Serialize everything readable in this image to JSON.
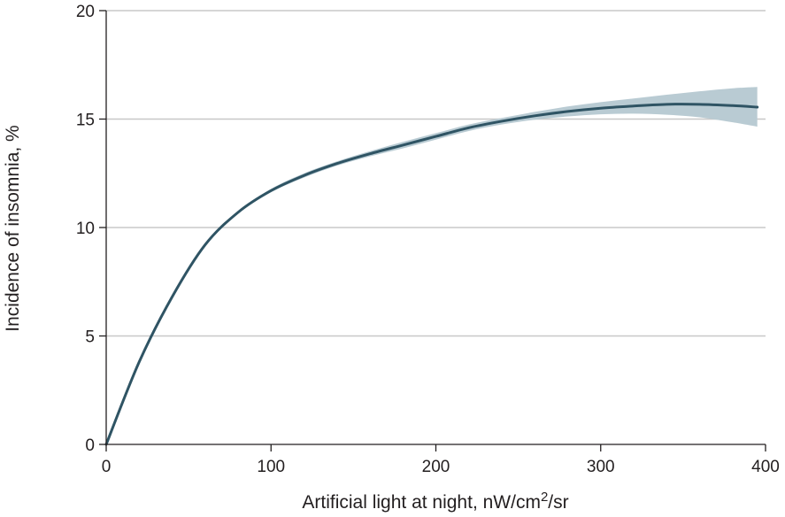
{
  "chart_data": {
    "type": "line",
    "title": "",
    "xlabel": {
      "text": "Artificial light at night, nW/cm",
      "superscript": "2",
      "suffix": "/sr"
    },
    "ylabel": "Incidence of insomnia, %",
    "xlim": [
      0,
      400
    ],
    "ylim": [
      0,
      20
    ],
    "xticks": [
      0,
      100,
      200,
      300,
      400
    ],
    "yticks": [
      0,
      5,
      10,
      15,
      20
    ],
    "xtick_labels": [
      "0",
      "100",
      "200",
      "300",
      "400"
    ],
    "ytick_labels": [
      "0",
      "5",
      "10",
      "15",
      "20"
    ],
    "grid": "horizontal",
    "colors": {
      "line": "#2f5464",
      "band": "#b9cbd3",
      "grid": "#c8c8c8",
      "axis": "#231f20"
    },
    "series": [
      {
        "x": [
          0,
          20,
          40,
          60,
          80,
          100,
          120,
          140,
          160,
          180,
          200,
          220,
          240,
          260,
          280,
          300,
          320,
          340,
          360,
          380,
          395
        ],
        "y": [
          0,
          3.8,
          6.8,
          9.2,
          10.7,
          11.7,
          12.4,
          12.95,
          13.4,
          13.8,
          14.2,
          14.6,
          14.9,
          15.15,
          15.35,
          15.5,
          15.6,
          15.68,
          15.68,
          15.62,
          15.55
        ],
        "ci_lower": [
          0,
          3.75,
          6.75,
          9.15,
          10.65,
          11.62,
          12.3,
          12.85,
          13.28,
          13.65,
          14.05,
          14.45,
          14.75,
          14.97,
          15.12,
          15.22,
          15.25,
          15.2,
          15.08,
          14.85,
          14.65
        ],
        "ci_upper": [
          0,
          3.85,
          6.85,
          9.25,
          10.75,
          11.78,
          12.5,
          13.05,
          13.52,
          13.95,
          14.35,
          14.75,
          15.05,
          15.33,
          15.58,
          15.78,
          15.95,
          16.12,
          16.28,
          16.42,
          16.48
        ]
      }
    ]
  }
}
